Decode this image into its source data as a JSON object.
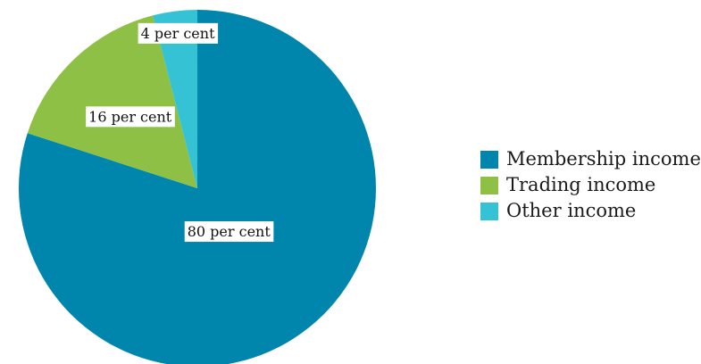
{
  "chart_data": {
    "type": "pie",
    "title": "",
    "start_angle_deg": 0,
    "direction": "clockwise",
    "slices": [
      {
        "name": "Membership income",
        "value": 80,
        "label": "80 per cent",
        "color": "#0086ad"
      },
      {
        "name": "Trading income",
        "value": 16,
        "label": "16 per cent",
        "color": "#8dc044"
      },
      {
        "name": "Other income",
        "value": 4,
        "label": "4 per cent",
        "color": "#35c2d4"
      }
    ],
    "legend": {
      "position": "right",
      "entries": [
        "Membership income",
        "Trading income",
        "Other income"
      ]
    }
  }
}
